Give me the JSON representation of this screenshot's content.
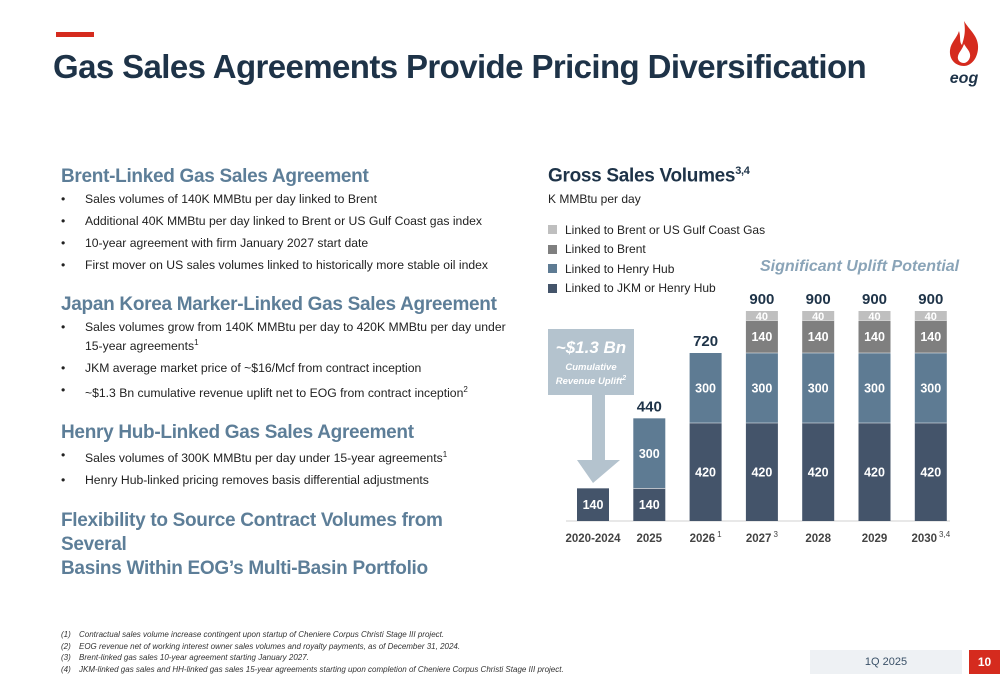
{
  "header": {
    "title": "Gas Sales Agreements Provide Pricing Diversification",
    "logo_text": "eog"
  },
  "sections": [
    {
      "title": "Brent-Linked Gas Sales Agreement",
      "bullets": [
        {
          "text": "Sales volumes of 140K MMBtu per day linked to Brent",
          "sup": ""
        },
        {
          "text": "Additional 40K MMBtu per day linked to Brent or US Gulf Coast gas index",
          "sup": ""
        },
        {
          "text": "10-year agreement with firm January 2027 start date",
          "sup": ""
        },
        {
          "text": "First mover on US sales volumes linked to historically more stable oil index",
          "sup": ""
        }
      ]
    },
    {
      "title": "Japan Korea Marker-Linked Gas Sales Agreement",
      "bullets": [
        {
          "text": "Sales volumes grow from 140K MMBtu per day to 420K MMBtu per day under 15-year agreements",
          "sup": "1"
        },
        {
          "text": "JKM average market price of ~$16/Mcf from contract inception",
          "sup": ""
        },
        {
          "text": "~$1.3 Bn cumulative revenue uplift net to EOG from contract inception",
          "sup": "2"
        }
      ]
    },
    {
      "title": "Henry Hub-Linked Gas Sales Agreement",
      "bullets": [
        {
          "text": "Sales volumes of 300K MMBtu per day under 15-year agreements",
          "sup": "1"
        },
        {
          "text": "Henry Hub-linked pricing removes basis differential adjustments",
          "sup": ""
        }
      ]
    }
  ],
  "flexibility": {
    "line1": "Flexibility to Source Contract Volumes from Several",
    "line2": "Basins Within EOG’s Multi-Basin Portfolio"
  },
  "chart_header": {
    "title": "Gross Sales Volumes",
    "title_sup": "3,4",
    "unit": "K MMBtu per day",
    "uplift_potential": "Significant Uplift Potential",
    "callout_value": "~$1.3 Bn",
    "callout_line1": "Cumulative",
    "callout_line2": "Revenue Uplift",
    "callout_sup": "2"
  },
  "chart_data": {
    "type": "bar",
    "stacked": true,
    "title": "Gross Sales Volumes",
    "ylabel": "K MMBtu per day",
    "categories": [
      "2020-2024",
      "2025",
      "2026",
      "2027",
      "2028",
      "2029",
      "2030"
    ],
    "category_sups": [
      "",
      "",
      "1",
      "3",
      "",
      "",
      "3,4"
    ],
    "series": [
      {
        "name": "Linked to JKM or Henry Hub",
        "color": "#44546a",
        "values": [
          140,
          140,
          420,
          420,
          420,
          420,
          420
        ]
      },
      {
        "name": "Linked to Henry Hub",
        "color": "#5e7b93",
        "values": [
          0,
          300,
          300,
          300,
          300,
          300,
          300
        ]
      },
      {
        "name": "Linked to Brent",
        "color": "#7f7f7f",
        "values": [
          0,
          0,
          0,
          140,
          140,
          140,
          140
        ]
      },
      {
        "name": "Linked to Brent or US Gulf Coast Gas",
        "color": "#bfbfbf",
        "values": [
          0,
          0,
          0,
          40,
          40,
          40,
          40
        ]
      }
    ],
    "totals": [
      null,
      440,
      720,
      900,
      900,
      900,
      900
    ],
    "legend_order": [
      "Linked to Brent or US Gulf Coast Gas",
      "Linked to Brent",
      "Linked to Henry Hub",
      "Linked to JKM or Henry Hub"
    ],
    "legend_position": "top-left",
    "grid": false,
    "ylim": [
      0,
      900
    ]
  },
  "footnotes": [
    {
      "num": "(1)",
      "text": "Contractual sales volume increase contingent upon startup of Cheniere Corpus Christi Stage III project."
    },
    {
      "num": "(2)",
      "text": "EOG revenue net of working interest owner sales volumes and royalty payments, as of December 31, 2024."
    },
    {
      "num": "(3)",
      "text": "Brent-linked gas sales 10-year agreement starting January 2027."
    },
    {
      "num": "(4)",
      "text": "JKM-linked gas sales and HH-linked gas sales 15-year agreements starting upon completion of Cheniere Corpus Christi Stage III project."
    }
  ],
  "footer": {
    "quarter": "1Q 2025",
    "page": "10"
  },
  "colors": {
    "accent": "#d52b1e",
    "title": "#1e3348",
    "section_title": "#5d7e98",
    "callout": "#b4c3ce",
    "uplift_text": "#8aa4b8"
  }
}
